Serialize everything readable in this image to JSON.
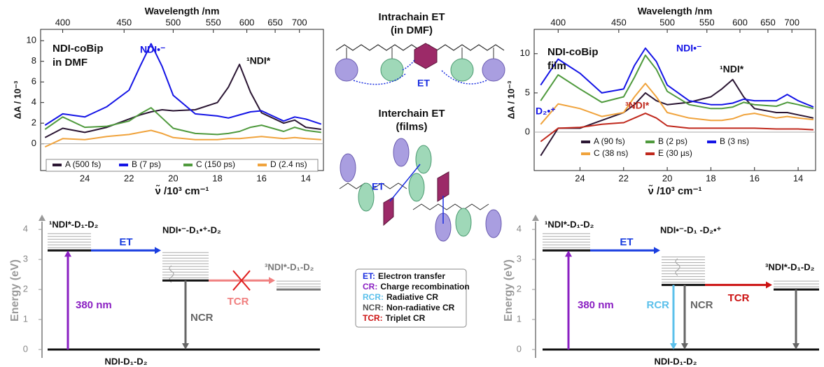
{
  "chart_data": [
    {
      "type": "line",
      "x_label": "ν̃ /10³ cm⁻¹",
      "x2_label": "Wavelength /nm",
      "y_label": "ΔA / 10⁻³",
      "xlim": [
        26.0,
        13.2
      ],
      "xticks": [
        24,
        22,
        20,
        18,
        16,
        14
      ],
      "x2ticks": [
        400,
        450,
        500,
        550,
        600,
        650,
        700
      ],
      "ylim": [
        -2.6,
        11.1
      ],
      "yticks": [
        0,
        2,
        4,
        6,
        8,
        10
      ],
      "zero_line": true,
      "annotations": [
        "NDI-coBip",
        "in DMF",
        "NDI•⁻",
        "¹NDI*"
      ],
      "x": [
        25.8,
        25,
        24,
        23,
        22,
        21.5,
        21,
        20.5,
        20,
        19,
        18,
        17.5,
        17,
        16.5,
        16,
        15,
        14.5,
        14,
        13.3
      ],
      "series": [
        {
          "name": "A (500 fs)",
          "color": "#2b1633",
          "values": [
            0.6,
            1.5,
            1.1,
            1.6,
            2.4,
            2.8,
            3.1,
            3.3,
            3.2,
            3.3,
            4.0,
            5.5,
            7.7,
            5.0,
            3.0,
            2.0,
            2.3,
            1.6,
            1.4
          ]
        },
        {
          "name": "B (7 ps)",
          "color": "#1414e6",
          "values": [
            1.8,
            2.9,
            2.6,
            3.6,
            5.2,
            7.5,
            9.7,
            7.5,
            4.7,
            2.9,
            2.7,
            2.5,
            2.8,
            3.1,
            3.2,
            2.2,
            2.6,
            2.4,
            1.9
          ]
        },
        {
          "name": "C (150 ps)",
          "color": "#4f9a3d",
          "values": [
            1.4,
            2.6,
            1.6,
            1.7,
            2.2,
            2.9,
            3.5,
            2.5,
            1.5,
            1.0,
            0.9,
            1.0,
            1.2,
            1.6,
            1.8,
            1.2,
            1.6,
            1.3,
            1.1
          ]
        },
        {
          "name": "D (2.4 ns)",
          "color": "#f0a33c",
          "values": [
            -0.3,
            0.5,
            0.4,
            0.7,
            0.9,
            1.1,
            1.3,
            1.0,
            0.6,
            0.4,
            0.4,
            0.5,
            0.5,
            0.6,
            0.7,
            0.5,
            0.6,
            0.5,
            0.4
          ]
        }
      ]
    },
    {
      "type": "line",
      "x_label": "ν̃ /10³ cm⁻¹",
      "x2_label": "Wavelength /nm",
      "y_label": "ΔA / 10⁻³",
      "xlim": [
        26.1,
        13.2
      ],
      "xticks": [
        24,
        22,
        20,
        18,
        16,
        14
      ],
      "x2ticks": [
        400,
        450,
        500,
        550,
        600,
        650,
        700
      ],
      "ylim": [
        -4.9,
        13.1
      ],
      "yticks": [
        0,
        5,
        10
      ],
      "zero_line": true,
      "annotations": [
        "NDI-coBip",
        "film",
        "NDI•⁻",
        "¹NDI*",
        "D₂•⁺",
        "³NDI*"
      ],
      "x": [
        25.8,
        25,
        24,
        23,
        22,
        21.5,
        21,
        20.5,
        20,
        19,
        18,
        17.5,
        17,
        16.5,
        16,
        15,
        14.5,
        14,
        13.3
      ],
      "series": [
        {
          "name": "A (90 fs)",
          "color": "#2b1633",
          "values": [
            -3.0,
            0.5,
            0.5,
            1.5,
            2.5,
            3.5,
            5.0,
            4.0,
            3.5,
            3.8,
            4.5,
            5.5,
            6.7,
            4.5,
            3.0,
            2.5,
            2.5,
            2.2,
            1.8
          ]
        },
        {
          "name": "B (2 ps)",
          "color": "#4f9a3d",
          "values": [
            4.0,
            7.3,
            5.5,
            3.8,
            4.5,
            7.0,
            9.8,
            8.0,
            5.2,
            3.5,
            3.0,
            3.0,
            3.2,
            3.8,
            3.5,
            3.3,
            3.8,
            3.5,
            3.0
          ]
        },
        {
          "name": "B (3 ns)",
          "color": "#1414e6",
          "values": [
            6.0,
            9.3,
            7.5,
            5.0,
            5.5,
            8.5,
            10.7,
            9.0,
            6.0,
            4.0,
            3.5,
            3.5,
            3.7,
            4.2,
            4.0,
            4.0,
            4.8,
            4.0,
            3.2
          ]
        },
        {
          "name": "C (38 ns)",
          "color": "#f0a33c",
          "values": [
            1.0,
            3.6,
            3.0,
            2.0,
            2.5,
            4.5,
            6.2,
            4.5,
            2.5,
            1.8,
            1.5,
            1.5,
            1.7,
            2.2,
            2.4,
            1.8,
            2.0,
            1.8,
            1.6
          ]
        },
        {
          "name": "E (30 µs)",
          "color": "#c0281c",
          "values": [
            -1.2,
            0.5,
            0.6,
            1.0,
            1.2,
            1.8,
            2.4,
            1.8,
            0.8,
            0.5,
            0.5,
            0.5,
            0.5,
            0.5,
            0.5,
            0.4,
            0.4,
            0.4,
            0.3
          ]
        }
      ]
    }
  ],
  "schemes": {
    "intrachain_title": [
      "Intrachain ET",
      "(in DMF)"
    ],
    "intrachain_et": "ET",
    "interchain_title": [
      "Interchain ET",
      "(films)"
    ],
    "interchain_et": "ET"
  },
  "legend_box": [
    {
      "abbr": "ET:",
      "text": "Electron transfer",
      "color": "#1a2ee0"
    },
    {
      "abbr": "CR:",
      "text": "Charge recombination",
      "color": "#8a1fc2"
    },
    {
      "abbr": "RCR:",
      "text": "Radiative CR",
      "color": "#5bc0eb"
    },
    {
      "abbr": "NCR:",
      "text": "Non-radiative CR",
      "color": "#555555"
    },
    {
      "abbr": "TCR:",
      "text": "Triplet CR",
      "color": "#cc1111"
    }
  ],
  "energy_diagrams": [
    {
      "y_label": "Energy (eV)",
      "ylim": [
        0,
        4.4
      ],
      "yticks": [
        0,
        1,
        2,
        3,
        4
      ],
      "levels": [
        {
          "label": "NDI-D₁-D₂",
          "energy": 0
        },
        {
          "label": "¹NDI*-D₁-D₂",
          "energy": 3.3
        },
        {
          "label": "NDI•⁻-D₁•⁺-D₂",
          "energy": 2.3
        },
        {
          "label": "³NDI*-D₁-D₂",
          "energy": 2.0
        }
      ],
      "transitions": [
        {
          "label": "380 nm",
          "color": "#8a1fc2"
        },
        {
          "label": "ET",
          "color": "#1a3ee0"
        },
        {
          "label": "NCR",
          "color": "#666666"
        },
        {
          "label": "TCR",
          "color": "#f08080"
        }
      ]
    },
    {
      "y_label": "Energy (eV)",
      "ylim": [
        0,
        4.4
      ],
      "yticks": [
        0,
        1,
        2,
        3,
        4
      ],
      "levels": [
        {
          "label": "NDI-D₁-D₂",
          "energy": 0
        },
        {
          "label": "¹NDI*-D₁-D₂",
          "energy": 3.3
        },
        {
          "label": "NDI•⁻-D₁ -D₂•⁺",
          "energy": 2.15
        },
        {
          "label": "³NDI*-D₁-D₂",
          "energy": 2.0
        }
      ],
      "transitions": [
        {
          "label": "380 nm",
          "color": "#8a1fc2"
        },
        {
          "label": "ET",
          "color": "#1a3ee0"
        },
        {
          "label": "RCR",
          "color": "#5bc0eb"
        },
        {
          "label": "NCR",
          "color": "#666666"
        },
        {
          "label": "TCR",
          "color": "#cc1111"
        }
      ]
    }
  ]
}
